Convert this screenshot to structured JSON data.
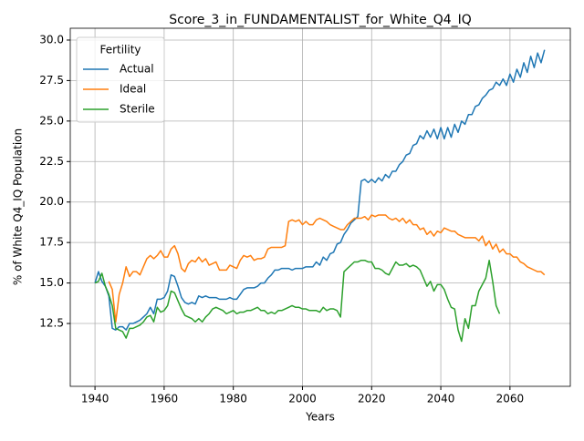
{
  "chart_data": {
    "type": "line",
    "title": "Score_3_in_FUNDAMENTALIST_for_White_Q4_IQ",
    "x_label": "Years",
    "y_label": "% of White Q4_IQ Population",
    "legend_title": "Fertility",
    "legend_position": "upper left",
    "grid": true,
    "xlim": [
      1932.85,
      2077.45
    ],
    "ylim": [
      8.62,
      30.73
    ],
    "xticks": [
      1940,
      1960,
      1980,
      2000,
      2020,
      2040,
      2060
    ],
    "yticks": [
      12.5,
      {
        "value": 15,
        "label": "15.0"
      },
      17.5,
      {
        "value": 20,
        "label": "20.0"
      },
      22.5,
      {
        "value": 25,
        "label": "25.0"
      },
      27.5,
      {
        "value": 30,
        "label": "30.0"
      }
    ],
    "x": [
      1940,
      1941,
      1942,
      1943,
      1944,
      1945,
      1946,
      1947,
      1948,
      1949,
      1950,
      1951,
      1952,
      1953,
      1954,
      1955,
      1956,
      1957,
      1958,
      1959,
      1960,
      1961,
      1962,
      1963,
      1964,
      1965,
      1966,
      1967,
      1968,
      1969,
      1970,
      1971,
      1972,
      1973,
      1974,
      1975,
      1976,
      1977,
      1978,
      1979,
      1980,
      1981,
      1982,
      1983,
      1984,
      1985,
      1986,
      1987,
      1988,
      1989,
      1990,
      1991,
      1992,
      1993,
      1994,
      1995,
      1996,
      1997,
      1998,
      1999,
      2000,
      2001,
      2002,
      2003,
      2004,
      2005,
      2006,
      2007,
      2008,
      2009,
      2010,
      2011,
      2012,
      2013,
      2014,
      2015,
      2016,
      2017,
      2018,
      2019,
      2020,
      2021,
      2022,
      2023,
      2024,
      2025,
      2026,
      2027,
      2028,
      2029,
      2030,
      2031,
      2032,
      2033,
      2034,
      2035,
      2036,
      2037,
      2038,
      2039,
      2040,
      2041,
      2042,
      2043,
      2044,
      2045,
      2046,
      2047,
      2048,
      2049,
      2050,
      2051,
      2052,
      2053,
      2054,
      2055,
      2056,
      2057,
      2058,
      2059,
      2060,
      2061,
      2062,
      2063,
      2064,
      2065,
      2066,
      2067,
      2068,
      2069,
      2070
    ],
    "series": [
      {
        "name": "Actual",
        "color": "#1f77b4",
        "values": [
          15.0,
          15.7,
          15.1,
          14.8,
          14.2,
          12.2,
          12.1,
          12.3,
          12.3,
          12.1,
          12.5,
          12.5,
          12.6,
          12.7,
          12.9,
          13.1,
          13.5,
          13.1,
          14.0,
          14.0,
          14.1,
          14.5,
          15.5,
          15.4,
          14.8,
          14.1,
          13.8,
          13.7,
          13.8,
          13.7,
          14.2,
          14.1,
          14.2,
          14.1,
          14.1,
          14.1,
          14.0,
          14.0,
          14.0,
          14.1,
          14.0,
          14.0,
          14.3,
          14.6,
          14.7,
          14.7,
          14.7,
          14.8,
          15.0,
          15.0,
          15.3,
          15.5,
          15.8,
          15.8,
          15.9,
          15.9,
          15.9,
          15.8,
          15.9,
          15.9,
          15.9,
          16.0,
          16.0,
          16.0,
          16.3,
          16.1,
          16.6,
          16.4,
          16.8,
          16.9,
          17.4,
          17.5,
          18.0,
          18.3,
          18.7,
          18.9,
          19.1,
          21.3,
          21.4,
          21.2,
          21.4,
          21.2,
          21.5,
          21.3,
          21.7,
          21.5,
          21.9,
          21.9,
          22.3,
          22.5,
          22.9,
          23.0,
          23.5,
          23.6,
          24.1,
          23.9,
          24.4,
          24.0,
          24.5,
          23.9,
          24.6,
          23.9,
          24.6,
          24.0,
          24.8,
          24.3,
          25.0,
          24.8,
          25.4,
          25.4,
          25.9,
          26.0,
          26.4,
          26.6,
          26.9,
          27.0,
          27.4,
          27.2,
          27.6,
          27.2,
          27.9,
          27.4,
          28.2,
          27.7,
          28.6,
          28.0,
          29.0,
          28.3,
          29.2,
          28.6,
          29.4
        ]
      },
      {
        "name": "Ideal",
        "color": "#ff7f0e",
        "values": [
          null,
          null,
          null,
          null,
          15.1,
          14.6,
          12.6,
          14.3,
          15.0,
          16.0,
          15.4,
          15.7,
          15.7,
          15.5,
          16.0,
          16.5,
          16.7,
          16.5,
          16.7,
          17.0,
          16.6,
          16.6,
          17.1,
          17.3,
          16.8,
          15.9,
          15.7,
          16.2,
          16.4,
          16.3,
          16.6,
          16.3,
          16.5,
          16.1,
          16.2,
          16.3,
          15.8,
          15.8,
          15.8,
          16.1,
          16.0,
          15.9,
          16.4,
          16.7,
          16.6,
          16.7,
          16.4,
          16.5,
          16.5,
          16.6,
          17.1,
          17.2,
          17.2,
          17.2,
          17.2,
          17.3,
          18.8,
          18.9,
          18.8,
          18.9,
          18.6,
          18.8,
          18.6,
          18.6,
          18.9,
          19.0,
          18.9,
          18.8,
          18.6,
          18.5,
          18.4,
          18.3,
          18.3,
          18.6,
          18.8,
          19.0,
          19.0,
          19.0,
          19.1,
          18.9,
          19.2,
          19.1,
          19.2,
          19.2,
          19.2,
          19.0,
          18.9,
          19.0,
          18.8,
          19.0,
          18.7,
          18.9,
          18.6,
          18.6,
          18.3,
          18.4,
          18.0,
          18.2,
          17.9,
          18.2,
          18.1,
          18.4,
          18.3,
          18.2,
          18.2,
          18.0,
          17.9,
          17.8,
          17.8,
          17.8,
          17.8,
          17.6,
          17.9,
          17.3,
          17.6,
          17.1,
          17.4,
          16.9,
          17.1,
          16.8,
          16.8,
          16.6,
          16.6,
          16.3,
          16.2,
          16.0,
          15.9,
          15.8,
          15.7,
          15.7,
          15.5
        ]
      },
      {
        "name": "Sterile",
        "color": "#2ca02c",
        "values": [
          15.0,
          15.1,
          15.6,
          14.8,
          14.3,
          13.6,
          12.2,
          12.1,
          12.0,
          11.6,
          12.2,
          12.2,
          12.3,
          12.4,
          12.6,
          12.9,
          13.0,
          12.6,
          13.5,
          13.2,
          13.3,
          13.6,
          14.5,
          14.4,
          13.9,
          13.4,
          13.0,
          12.9,
          12.8,
          12.6,
          12.8,
          12.6,
          12.9,
          13.1,
          13.4,
          13.5,
          13.4,
          13.3,
          13.1,
          13.2,
          13.3,
          13.1,
          13.2,
          13.2,
          13.3,
          13.3,
          13.4,
          13.5,
          13.3,
          13.3,
          13.1,
          13.2,
          13.1,
          13.3,
          13.3,
          13.4,
          13.5,
          13.6,
          13.5,
          13.5,
          13.4,
          13.4,
          13.3,
          13.3,
          13.3,
          13.2,
          13.5,
          13.3,
          13.4,
          13.4,
          13.3,
          12.9,
          15.7,
          15.9,
          16.1,
          16.3,
          16.3,
          16.4,
          16.4,
          16.3,
          16.3,
          15.9,
          15.9,
          15.8,
          15.6,
          15.5,
          15.9,
          16.3,
          16.1,
          16.1,
          16.2,
          16.0,
          16.1,
          16.0,
          15.8,
          15.3,
          14.8,
          15.1,
          14.5,
          14.9,
          14.9,
          14.6,
          14.0,
          13.5,
          13.4,
          12.1,
          11.4,
          12.8,
          12.2,
          13.6,
          13.6,
          14.5,
          14.9,
          15.3,
          16.4,
          15.1,
          13.6,
          13.1,
          null,
          null,
          null,
          null,
          null,
          null,
          null,
          null,
          null,
          null,
          null,
          null,
          null
        ]
      }
    ]
  }
}
